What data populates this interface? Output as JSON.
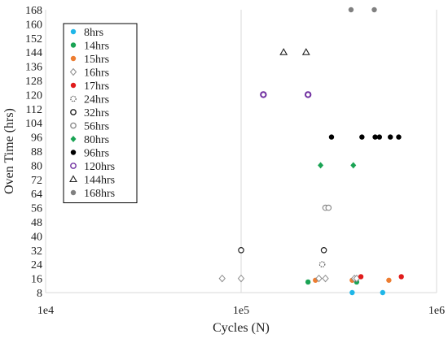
{
  "chart_data": {
    "type": "scatter",
    "xlabel": "Cycles (N)",
    "ylabel": "Oven Time (hrs)",
    "xscale": "log",
    "xlim": [
      10000,
      1000000
    ],
    "ylim": [
      8,
      168
    ],
    "x_tick_labels": [
      "1e4",
      "1e5",
      "1e6"
    ],
    "y_ticks": [
      8,
      16,
      24,
      32,
      40,
      48,
      56,
      64,
      72,
      80,
      88,
      96,
      104,
      112,
      120,
      128,
      136,
      144,
      152,
      160,
      168
    ],
    "grid": {
      "vertical": true,
      "horizontal": false
    },
    "legend_position": "top-left",
    "series": [
      {
        "name": "8hrs",
        "marker": "circle-filled",
        "color": "#1fb6e8",
        "points": [
          [
            370000,
            8
          ],
          [
            530000,
            8
          ]
        ]
      },
      {
        "name": "14hrs",
        "marker": "circle-filled",
        "color": "#1aa354",
        "points": [
          [
            220000,
            14
          ],
          [
            390000,
            14
          ]
        ]
      },
      {
        "name": "15hrs",
        "marker": "circle-filled",
        "color": "#ed7d31",
        "points": [
          [
            240000,
            15
          ],
          [
            370000,
            15
          ],
          [
            570000,
            15
          ]
        ]
      },
      {
        "name": "16hrs",
        "marker": "diamond-open",
        "color": "#8c8c8c",
        "points": [
          [
            80000,
            16
          ],
          [
            100000,
            16
          ],
          [
            250000,
            16
          ],
          [
            270000,
            16
          ],
          [
            380000,
            16
          ],
          [
            390000,
            16
          ]
        ]
      },
      {
        "name": "17hrs",
        "marker": "circle-filled",
        "color": "#e01b1b",
        "points": [
          [
            410000,
            17
          ],
          [
            660000,
            17
          ]
        ]
      },
      {
        "name": "24hrs",
        "marker": "circle-dotted",
        "color": "#555555",
        "points": [
          [
            260000,
            24
          ]
        ]
      },
      {
        "name": "32hrs",
        "marker": "circle-open",
        "color": "#222222",
        "points": [
          [
            100000,
            32
          ],
          [
            265000,
            32
          ]
        ]
      },
      {
        "name": "56hrs",
        "marker": "circle-open",
        "color": "#8c8c8c",
        "points": [
          [
            270000,
            56
          ],
          [
            280000,
            56
          ]
        ]
      },
      {
        "name": "80hrs",
        "marker": "diamond-filled",
        "color": "#1aa354",
        "points": [
          [
            255000,
            80
          ],
          [
            375000,
            80
          ]
        ]
      },
      {
        "name": "96hrs",
        "marker": "circle-filled",
        "color": "#000000",
        "points": [
          [
            290000,
            96
          ],
          [
            415000,
            96
          ],
          [
            485000,
            96
          ],
          [
            510000,
            96
          ],
          [
            580000,
            96
          ],
          [
            640000,
            96
          ]
        ]
      },
      {
        "name": "120hrs",
        "marker": "circle-open",
        "color": "#7030a0",
        "points": [
          [
            130000,
            120
          ],
          [
            220000,
            120
          ]
        ]
      },
      {
        "name": "144hrs",
        "marker": "triangle-open",
        "color": "#222222",
        "points": [
          [
            165000,
            144
          ],
          [
            215000,
            144
          ]
        ]
      },
      {
        "name": "168hrs",
        "marker": "circle-filled",
        "color": "#808080",
        "points": [
          [
            365000,
            168
          ],
          [
            480000,
            168
          ]
        ]
      }
    ]
  }
}
